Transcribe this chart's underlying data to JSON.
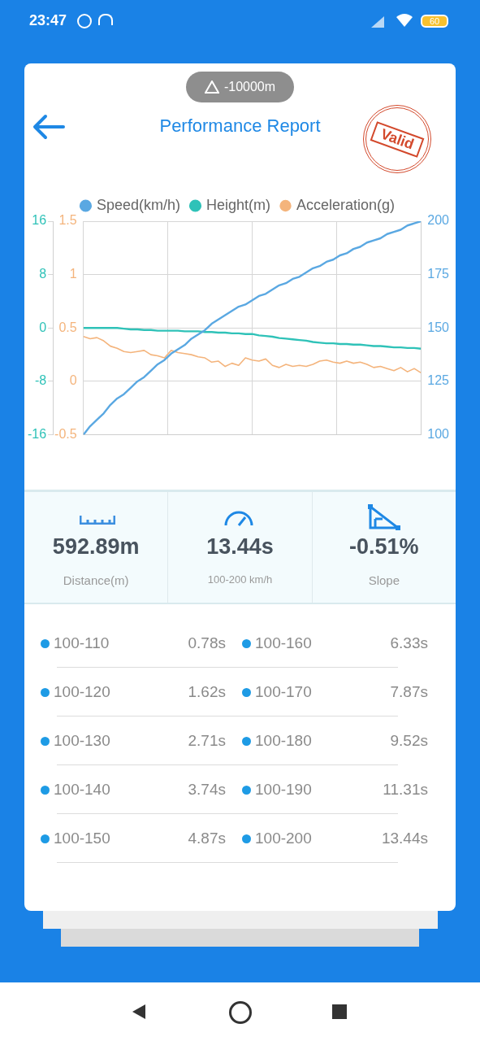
{
  "chart_data": [
    {
      "type": "other",
      "title": "Performance Report",
      "annotations": [
        "23:47",
        "60",
        "-10000m",
        "Valid"
      ]
    },
    {
      "type": "line",
      "categories": [
        null,
        null,
        null,
        null,
        null,
        null,
        null,
        null,
        null,
        null,
        null,
        null,
        null,
        null,
        null,
        null,
        null,
        null,
        null,
        null,
        null,
        null,
        null,
        null,
        null,
        null,
        null,
        null,
        null,
        null,
        null,
        null,
        null,
        null,
        null,
        null,
        null,
        null,
        null,
        null,
        null,
        null,
        null,
        null,
        null,
        null,
        null,
        null,
        null,
        null,
        null
      ],
      "ylim": [
        -16,
        16
      ],
      "yticks": [
        -16,
        -8,
        0,
        8,
        16
      ],
      "y2lim": [
        -0.5,
        1.5
      ],
      "y2ticks": [
        -0.5,
        0,
        0.5,
        1,
        1.5
      ],
      "y3lim": [
        100,
        200
      ],
      "y3ticks": [
        100,
        125,
        150,
        175,
        200
      ],
      "grid": true,
      "legend": "top",
      "marker": "none",
      "line_style": "solid",
      "series": [
        {
          "name": "Speed(km/h)",
          "color": "#5aa8e2",
          "axis": "y3",
          "values": [
            100,
            104,
            107,
            110,
            114,
            117,
            119,
            122,
            125,
            127,
            130,
            133,
            135,
            138,
            140,
            142,
            145,
            147,
            149,
            152,
            154,
            156,
            158,
            160,
            161,
            163,
            165,
            166,
            168,
            170,
            171,
            173,
            174,
            176,
            178,
            179,
            181,
            182,
            184,
            185,
            187,
            188,
            190,
            191,
            192,
            194,
            195,
            196,
            198,
            199,
            200
          ]
        },
        {
          "name": "Height(m)",
          "color": "#2fc2b8",
          "axis": "y",
          "values": [
            0,
            0,
            0,
            0,
            0,
            0,
            -0.1,
            -0.2,
            -0.2,
            -0.3,
            -0.3,
            -0.4,
            -0.4,
            -0.4,
            -0.4,
            -0.5,
            -0.5,
            -0.5,
            -0.6,
            -0.6,
            -0.7,
            -0.7,
            -0.8,
            -0.8,
            -0.9,
            -0.9,
            -1.1,
            -1.2,
            -1.3,
            -1.5,
            -1.6,
            -1.7,
            -1.8,
            -1.9,
            -2.1,
            -2.2,
            -2.3,
            -2.3,
            -2.4,
            -2.4,
            -2.5,
            -2.5,
            -2.6,
            -2.7,
            -2.7,
            -2.8,
            -2.9,
            -2.9,
            -3.0,
            -3.0,
            -3.1
          ]
        },
        {
          "name": "Acceleration(g)",
          "color": "#f4b47c",
          "axis": "y2",
          "values": [
            0.42,
            0.4,
            0.41,
            0.38,
            0.33,
            0.31,
            0.28,
            0.27,
            0.28,
            0.29,
            0.25,
            0.24,
            0.22,
            0.29,
            0.27,
            0.26,
            0.25,
            0.23,
            0.22,
            0.18,
            0.19,
            0.14,
            0.17,
            0.15,
            0.22,
            0.2,
            0.19,
            0.21,
            0.15,
            0.13,
            0.16,
            0.14,
            0.15,
            0.14,
            0.16,
            0.19,
            0.2,
            0.18,
            0.17,
            0.19,
            0.17,
            0.18,
            0.16,
            0.13,
            0.14,
            0.12,
            0.1,
            0.13,
            0.09,
            0.12,
            0.08
          ]
        }
      ]
    },
    {
      "type": "other",
      "annotations": [
        "592.89m",
        "Distance(m)",
        "13.44s",
        "100-200 km/h",
        "-0.51%",
        "Slope"
      ]
    },
    {
      "type": "other",
      "annotations": [
        "100-110",
        "0.78s",
        "100-160",
        "6.33s",
        "100-120",
        "1.62s",
        "100-170",
        "7.87s",
        "100-130",
        "2.71s",
        "100-180",
        "9.52s",
        "100-140",
        "3.74s",
        "100-190",
        "11.31s",
        "100-150",
        "4.87s",
        "100-200",
        "13.44s"
      ]
    }
  ]
}
